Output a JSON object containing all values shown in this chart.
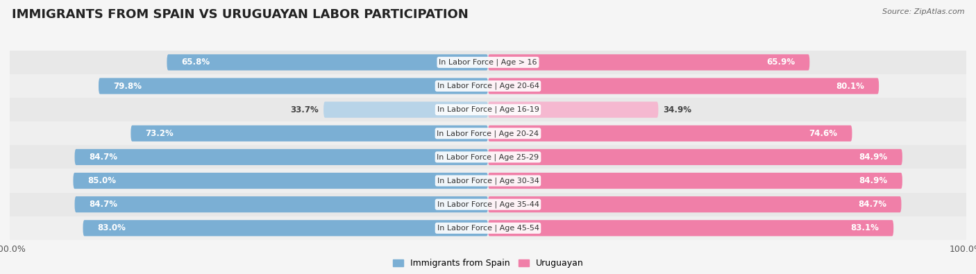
{
  "title": "IMMIGRANTS FROM SPAIN VS URUGUAYAN LABOR PARTICIPATION",
  "source": "Source: ZipAtlas.com",
  "categories": [
    "In Labor Force | Age > 16",
    "In Labor Force | Age 20-64",
    "In Labor Force | Age 16-19",
    "In Labor Force | Age 20-24",
    "In Labor Force | Age 25-29",
    "In Labor Force | Age 30-34",
    "In Labor Force | Age 35-44",
    "In Labor Force | Age 45-54"
  ],
  "spain_values": [
    65.8,
    79.8,
    33.7,
    73.2,
    84.7,
    85.0,
    84.7,
    83.0
  ],
  "uruguay_values": [
    65.9,
    80.1,
    34.9,
    74.6,
    84.9,
    84.9,
    84.7,
    83.1
  ],
  "spain_color": "#7bafd4",
  "spain_color_light": "#b8d4e8",
  "uruguay_color": "#f07fa8",
  "uruguay_color_light": "#f5b8d0",
  "bar_height": 0.68,
  "background_color": "#f5f5f5",
  "row_bg_even": "#e8e8e8",
  "row_bg_odd": "#efefef",
  "legend_labels": [
    "Immigrants from Spain",
    "Uruguayan"
  ],
  "title_fontsize": 13,
  "label_fontsize": 8,
  "value_fontsize": 8.5
}
